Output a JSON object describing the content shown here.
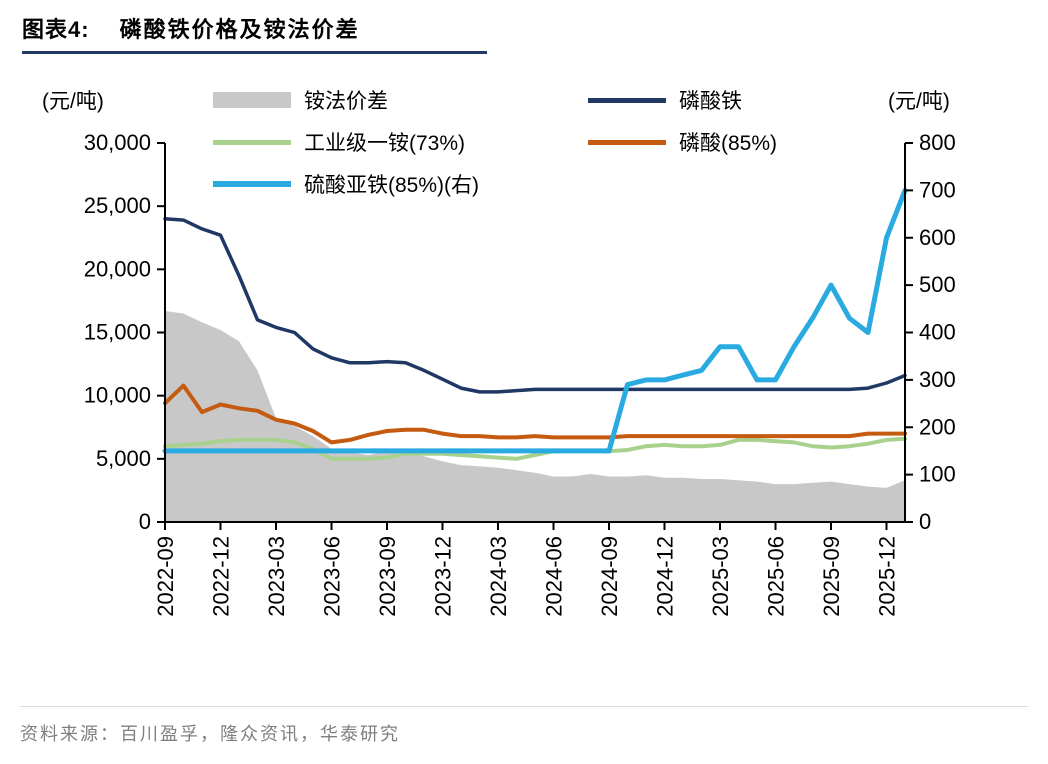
{
  "header": {
    "figure_label": "图表4:",
    "title": "磷酸铁价格及铵法价差"
  },
  "axes_units": {
    "left": "(元/吨)",
    "right": "(元/吨)"
  },
  "footer": {
    "source": "资料来源：百川盈孚，隆众资讯，华泰研究"
  },
  "colors": {
    "accent_navy": "#1F3864",
    "area_gray": "#C8C8C8",
    "green": "#A9D18E",
    "orange": "#C55A11",
    "cyan": "#29ABE2",
    "source_text": "#7F7F7F",
    "axis_black": "#000000"
  },
  "chart_data": {
    "type": "line",
    "title": "磷酸铁价格及铵法价差",
    "legend_position": "top",
    "grid": false,
    "x": [
      "2022-09",
      "2022-10",
      "2022-11",
      "2022-12",
      "2023-01",
      "2023-02",
      "2023-03",
      "2023-04",
      "2023-05",
      "2023-06",
      "2023-07",
      "2023-08",
      "2023-09",
      "2023-10",
      "2023-11",
      "2023-12",
      "2024-01",
      "2024-02",
      "2024-03",
      "2024-04",
      "2024-05",
      "2024-06",
      "2024-07",
      "2024-08",
      "2024-09",
      "2024-10",
      "2024-11",
      "2024-12",
      "2025-01",
      "2025-02",
      "2025-03",
      "2025-04",
      "2025-05",
      "2025-06",
      "2025-07",
      "2025-08",
      "2025-09",
      "2025-10",
      "2025-11",
      "2025-12",
      "2026-01"
    ],
    "x_tick_labels": [
      "2022-09",
      "2022-12",
      "2023-03",
      "2023-06",
      "2023-09",
      "2023-12",
      "2024-03",
      "2024-06",
      "2024-09",
      "2024-12",
      "2025-03",
      "2025-06",
      "2025-09",
      "2025-12"
    ],
    "x_tick_indices": [
      0,
      3,
      6,
      9,
      12,
      15,
      18,
      21,
      24,
      27,
      30,
      33,
      36,
      39
    ],
    "left_axis": {
      "unit": "(元/吨)",
      "min": 0,
      "max": 30000,
      "tick_labels": [
        "0",
        "5,000",
        "10,000",
        "15,000",
        "20,000",
        "25,000",
        "30,000"
      ]
    },
    "right_axis": {
      "unit": "(元/吨)",
      "min": 0,
      "max": 800,
      "tick_labels": [
        "0",
        "100",
        "200",
        "300",
        "400",
        "500",
        "600",
        "700",
        "800"
      ]
    },
    "series": [
      {
        "name": "铵法价差",
        "type": "area",
        "axis": "left",
        "color": "#C8C8C8",
        "values": [
          16700,
          16500,
          15800,
          15200,
          14300,
          12000,
          8200,
          7600,
          6800,
          5800,
          5500,
          5300,
          5600,
          5500,
          5200,
          4800,
          4500,
          4400,
          4300,
          4100,
          3900,
          3600,
          3600,
          3800,
          3600,
          3600,
          3700,
          3500,
          3500,
          3400,
          3400,
          3300,
          3200,
          3000,
          3000,
          3100,
          3200,
          3000,
          2800,
          2700,
          3300
        ]
      },
      {
        "name": "磷酸铁",
        "type": "line",
        "axis": "left",
        "color": "#1F3864",
        "values": [
          24000,
          23900,
          23200,
          22700,
          19500,
          16000,
          15400,
          15000,
          13700,
          13000,
          12600,
          12600,
          12700,
          12600,
          12000,
          11300,
          10600,
          10300,
          10300,
          10400,
          10500,
          10500,
          10500,
          10500,
          10500,
          10500,
          10500,
          10500,
          10500,
          10500,
          10500,
          10500,
          10500,
          10500,
          10500,
          10500,
          10500,
          10500,
          10600,
          11000,
          11600
        ]
      },
      {
        "name": "工业级一铵(73%)",
        "type": "line",
        "axis": "left",
        "color": "#A9D18E",
        "values": [
          6000,
          6100,
          6200,
          6400,
          6500,
          6500,
          6500,
          6300,
          5800,
          5000,
          5000,
          5000,
          5100,
          5400,
          5400,
          5400,
          5300,
          5200,
          5100,
          5000,
          5300,
          5600,
          5600,
          5600,
          5600,
          5700,
          6000,
          6100,
          6000,
          6000,
          6100,
          6500,
          6500,
          6400,
          6300,
          6000,
          5900,
          6000,
          6200,
          6500,
          6600
        ]
      },
      {
        "name": "磷酸(85%)",
        "type": "line",
        "axis": "left",
        "color": "#C55A11",
        "values": [
          9400,
          10800,
          8700,
          9300,
          9000,
          8800,
          8100,
          7800,
          7200,
          6300,
          6500,
          6900,
          7200,
          7300,
          7300,
          7000,
          6800,
          6800,
          6700,
          6700,
          6800,
          6700,
          6700,
          6700,
          6700,
          6800,
          6800,
          6800,
          6800,
          6800,
          6800,
          6800,
          6800,
          6800,
          6800,
          6800,
          6800,
          6800,
          7000,
          7000,
          7000
        ]
      },
      {
        "name": "硫酸亚铁(85%)(右)",
        "type": "line",
        "axis": "right",
        "color": "#29ABE2",
        "values": [
          150,
          150,
          150,
          150,
          150,
          150,
          150,
          150,
          150,
          150,
          150,
          150,
          150,
          150,
          150,
          150,
          150,
          150,
          150,
          150,
          150,
          150,
          150,
          150,
          150,
          290,
          300,
          300,
          310,
          320,
          370,
          370,
          300,
          300,
          370,
          430,
          500,
          430,
          400,
          600,
          700
        ]
      }
    ]
  }
}
